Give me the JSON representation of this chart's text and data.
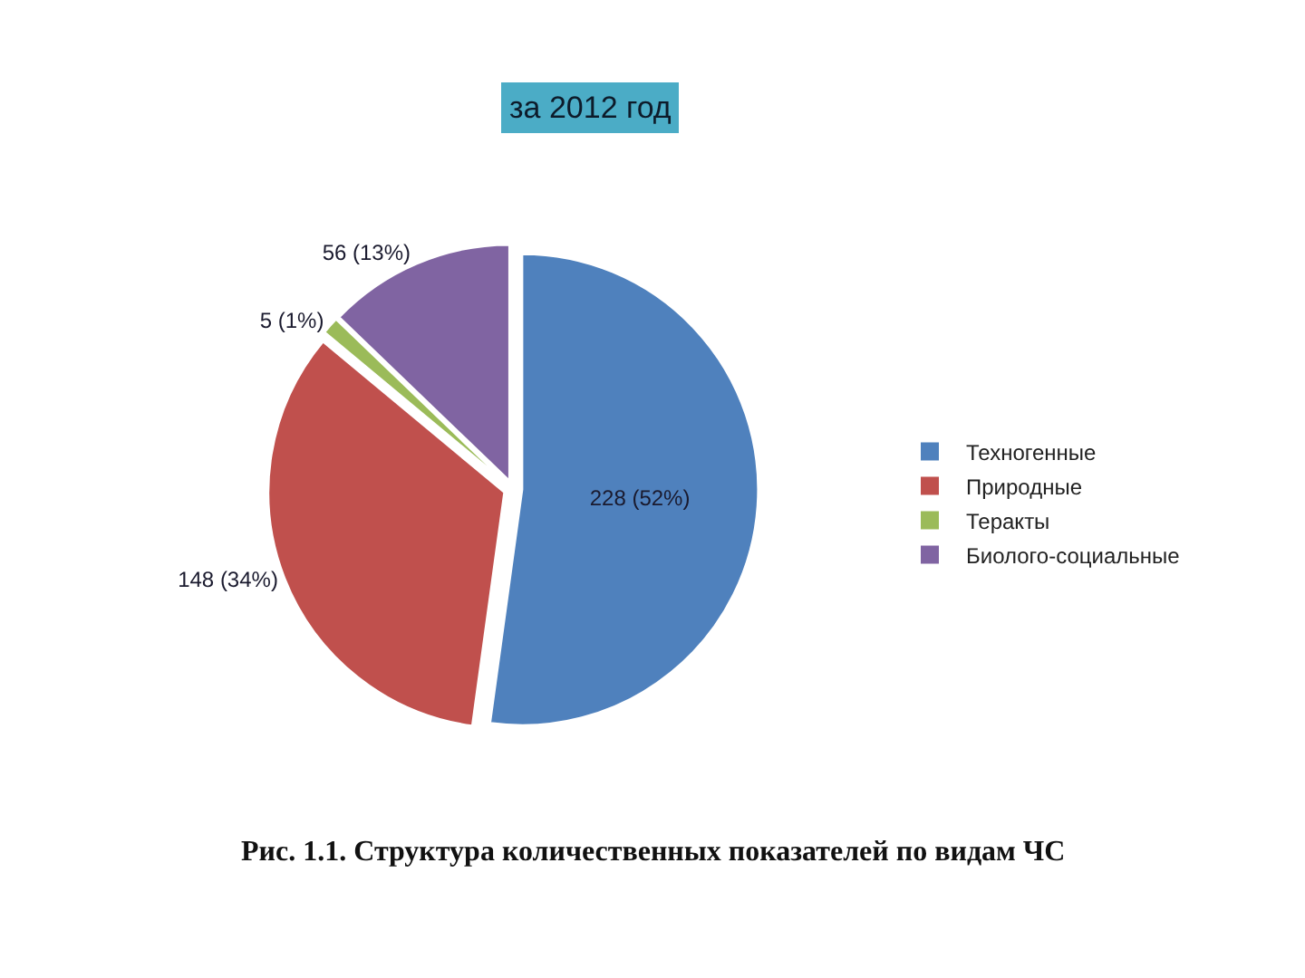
{
  "chart_data": {
    "type": "pie",
    "title": "за 2012 год",
    "categories": [
      "Техногенные",
      "Природные",
      "Теракты",
      "Биолого-социальные"
    ],
    "values": [
      228,
      148,
      5,
      56
    ],
    "colors": [
      "#4f81bd",
      "#c0504d",
      "#9bbb59",
      "#8064a2"
    ],
    "value_labels": [
      "228 (52%)",
      "148 (34%)",
      "5 (1%)",
      "56 (13%)"
    ],
    "legend": "right",
    "annotations": [
      "Рис. 1.1. Структура количественных показателей по видам ЧС"
    ]
  }
}
